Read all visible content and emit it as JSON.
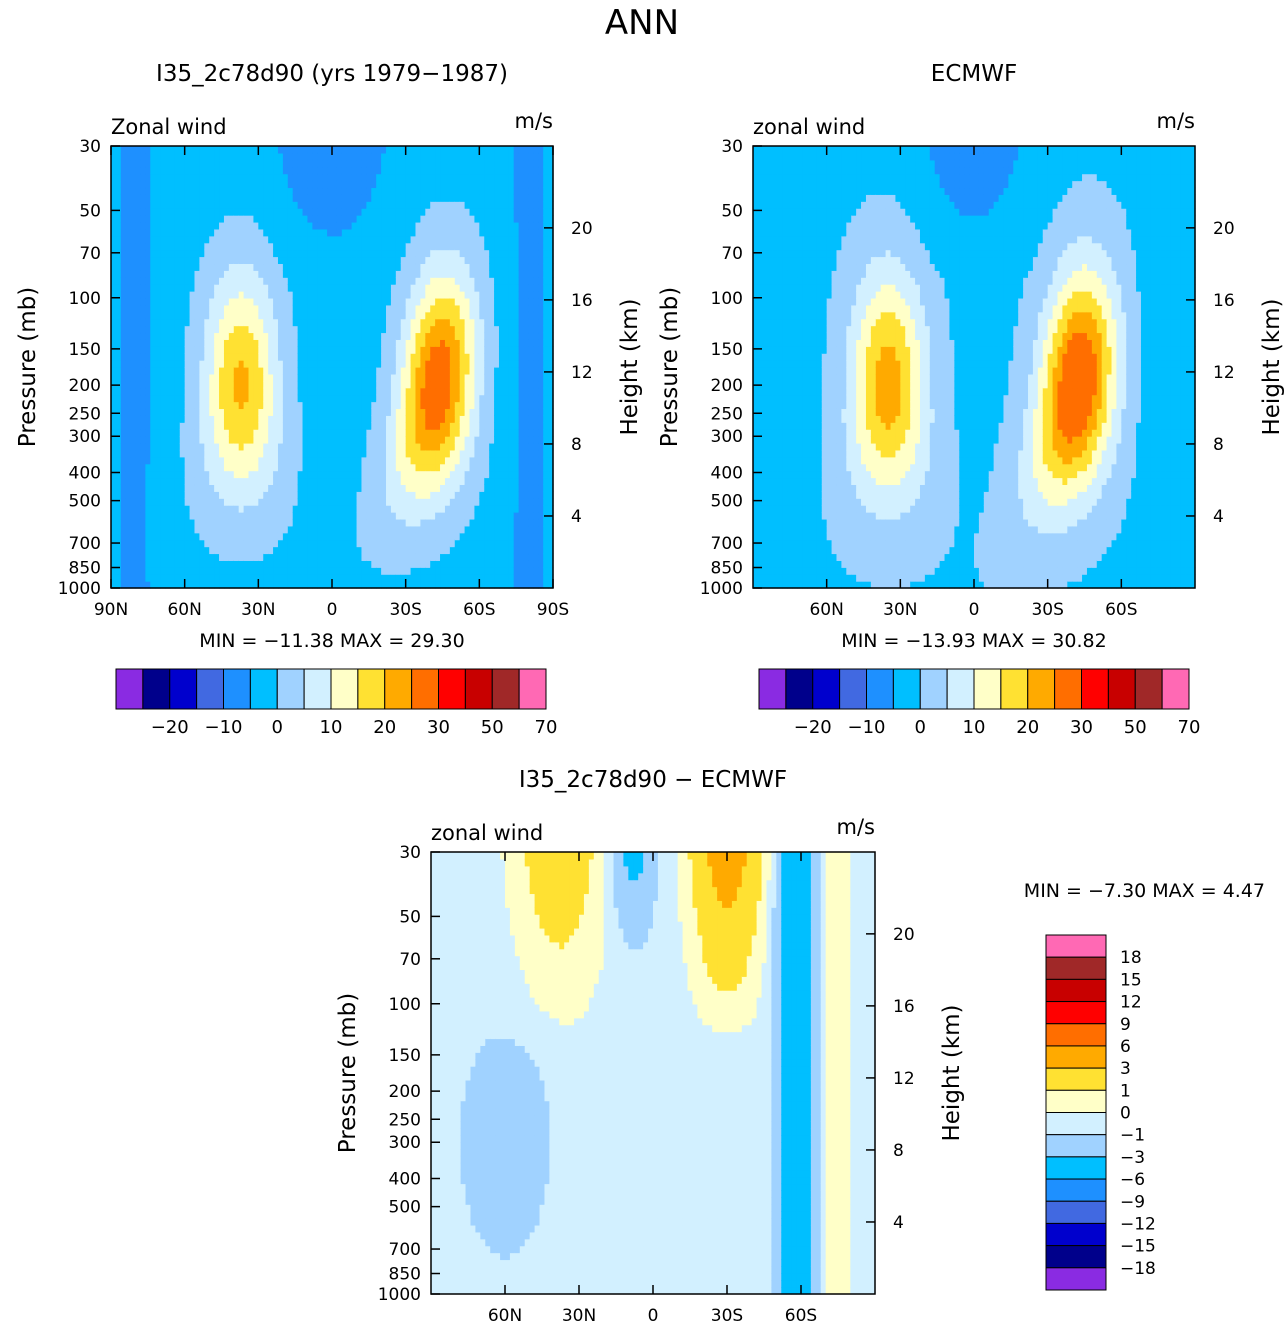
{
  "page_title": "ANN",
  "chart_data": [
    {
      "type": "heatmap",
      "title": "I35_2c78d90 (yrs 1979-1987)",
      "subtitle_left": "Zonal wind",
      "units": "m/s",
      "ylabel": "Pressure (mb)",
      "ylabel_right": "Height (km)",
      "x_ticks": [
        "90N",
        "60N",
        "30N",
        "0",
        "30S",
        "60S",
        "90S"
      ],
      "x_values": [
        90,
        60,
        30,
        0,
        -30,
        -60,
        -90
      ],
      "xlim": [
        90,
        -90
      ],
      "y_ticks": [
        "30",
        "50",
        "70",
        "100",
        "150",
        "200",
        "250",
        "300",
        "400",
        "500",
        "700",
        "850",
        "1000"
      ],
      "y_values": [
        30,
        50,
        70,
        100,
        150,
        200,
        250,
        300,
        400,
        500,
        700,
        850,
        1000
      ],
      "ylim": [
        1000,
        30
      ],
      "y_scale": "log",
      "height_ticks": [
        "4",
        "8",
        "12",
        "16",
        "20"
      ],
      "height_values": [
        4,
        8,
        12,
        16,
        20
      ],
      "min_label": "MIN =",
      "min_value": "-11.38",
      "max_label": "MAX =",
      "max_value": "29.30",
      "jets": [
        {
          "lat": 37,
          "pressure": 200,
          "max": 21,
          "hemisphere": "N"
        },
        {
          "lat": -43,
          "pressure": 200,
          "max": 29.3,
          "hemisphere": "S"
        }
      ],
      "colorbar_labels": [
        "-20",
        "-10",
        "0",
        "10",
        "20",
        "30",
        "50",
        "70"
      ]
    },
    {
      "type": "heatmap",
      "title": "ECMWF",
      "subtitle_left": "zonal wind",
      "units": "m/s",
      "ylabel": "Pressure (mb)",
      "ylabel_right": "Height (km)",
      "x_ticks": [
        "60N",
        "30N",
        "0",
        "30S",
        "60S"
      ],
      "x_values": [
        60,
        30,
        0,
        -30,
        -60
      ],
      "xlim": [
        90,
        -90
      ],
      "y_ticks": [
        "30",
        "50",
        "70",
        "100",
        "150",
        "200",
        "250",
        "300",
        "400",
        "500",
        "700",
        "850",
        "1000"
      ],
      "y_values": [
        30,
        50,
        70,
        100,
        150,
        200,
        250,
        300,
        400,
        500,
        700,
        850,
        1000
      ],
      "ylim": [
        1000,
        30
      ],
      "y_scale": "log",
      "height_ticks": [
        "4",
        "8",
        "12",
        "16",
        "20"
      ],
      "height_values": [
        4,
        8,
        12,
        16,
        20
      ],
      "min_label": "MIN =",
      "min_value": "-13.93",
      "max_label": "MAX =",
      "max_value": "30.82",
      "jets": [
        {
          "lat": 35,
          "pressure": 200,
          "max": 22,
          "hemisphere": "N"
        },
        {
          "lat": -42,
          "pressure": 200,
          "max": 30.8,
          "hemisphere": "S"
        }
      ],
      "colorbar_labels": [
        "-20",
        "-10",
        "0",
        "10",
        "20",
        "30",
        "50",
        "70"
      ]
    },
    {
      "type": "heatmap",
      "title": "I35_2c78d90 - ECMWF",
      "subtitle_left": "zonal wind",
      "units": "m/s",
      "ylabel": "Pressure (mb)",
      "ylabel_right": "Height (km)",
      "x_ticks": [
        "60N",
        "30N",
        "0",
        "30S",
        "60S"
      ],
      "x_values": [
        60,
        30,
        0,
        -30,
        -60
      ],
      "xlim": [
        90,
        -90
      ],
      "y_ticks": [
        "30",
        "50",
        "70",
        "100",
        "150",
        "200",
        "250",
        "300",
        "400",
        "500",
        "700",
        "850",
        "1000"
      ],
      "y_values": [
        30,
        50,
        70,
        100,
        150,
        200,
        250,
        300,
        400,
        500,
        700,
        850,
        1000
      ],
      "ylim": [
        1000,
        30
      ],
      "y_scale": "log",
      "height_ticks": [
        "4",
        "8",
        "12",
        "16",
        "20"
      ],
      "height_values": [
        4,
        8,
        12,
        16,
        20
      ],
      "min_label": "MIN =",
      "min_value": "-7.30",
      "max_label": "MAX =",
      "max_value": "4.47",
      "colorbar_labels": [
        "18",
        "15",
        "12",
        "9",
        "6",
        "3",
        "1",
        "0",
        "-1",
        "-3",
        "-6",
        "-9",
        "-12",
        "-15",
        "-18"
      ]
    }
  ],
  "colors": {
    "scale": [
      "#8a2be2",
      "#00008b",
      "#0000cd",
      "#4169e1",
      "#1e90ff",
      "#00bfff",
      "#a0d2ff",
      "#d2f0ff",
      "#ffffc8",
      "#ffe132",
      "#ffaa00",
      "#ff6e00",
      "#ff0000",
      "#c80000",
      "#a02828",
      "#ff69b4"
    ],
    "background": "#ffffff"
  }
}
